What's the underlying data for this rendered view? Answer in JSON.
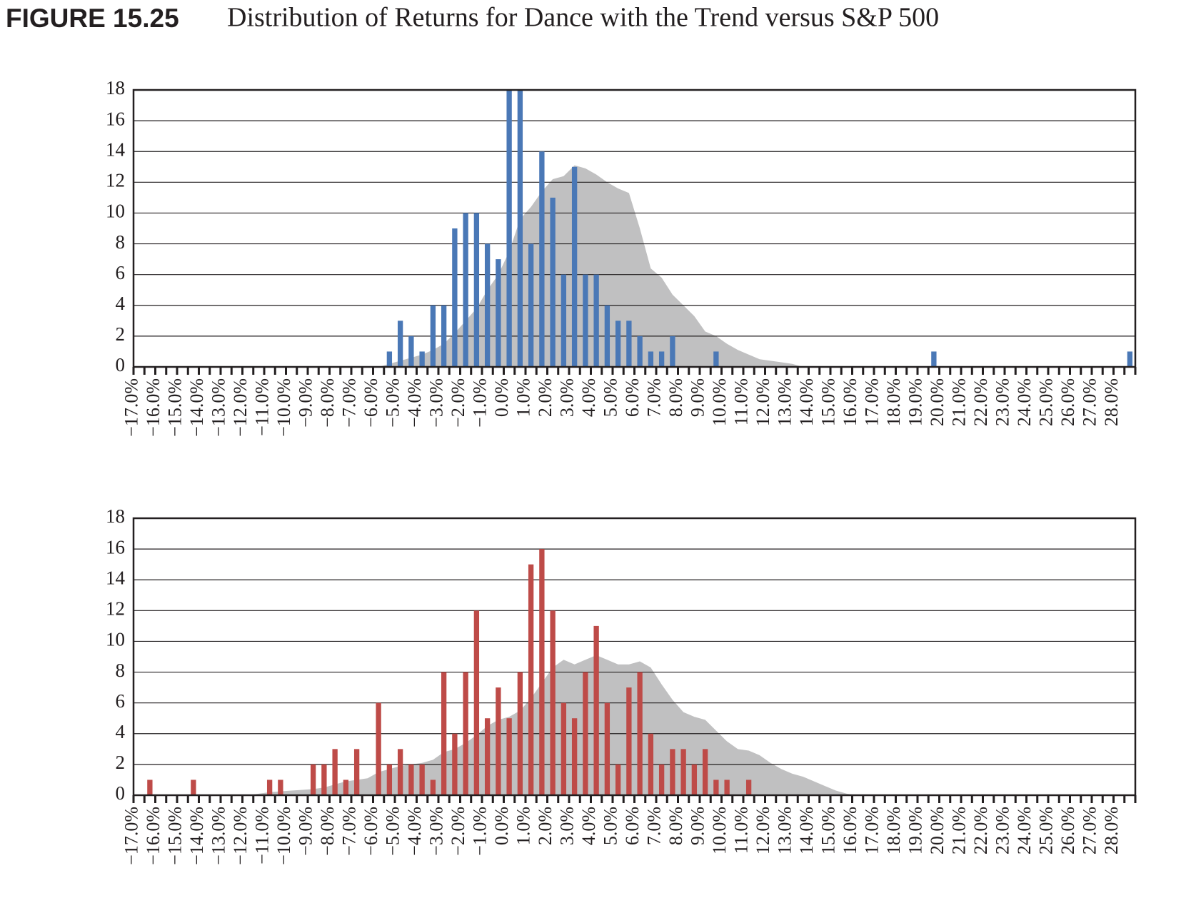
{
  "figure_label": "FIGURE 15.25",
  "title": "Distribution of Returns for Dance with the Trend versus S&P 500",
  "chart_data": [
    {
      "type": "bar",
      "categories": [
        "−17.0%",
        null,
        "−16.0%",
        null,
        "−15.0%",
        null,
        "−14.0%",
        null,
        "−13.0%",
        null,
        "−12.0%",
        null,
        "−11.0%",
        null,
        "−10.0%",
        null,
        "−9.0%",
        null,
        "−8.0%",
        null,
        "−7.0%",
        null,
        "−6.0%",
        null,
        "−5.0%",
        null,
        "−4.0%",
        null,
        "−3.0%",
        null,
        "−2.0%",
        null,
        "−1.0%",
        null,
        "0.0%",
        null,
        "1.0%",
        null,
        "2.0%",
        null,
        "3.0%",
        null,
        "4.0%",
        null,
        "5.0%",
        null,
        "6.0%",
        null,
        "7.0%",
        null,
        "8.0%",
        null,
        "9.0%",
        null,
        "10.0%",
        null,
        "11.0%",
        null,
        "12.0%",
        null,
        "13.0%",
        null,
        "14.0%",
        null,
        "15.0%",
        null,
        "16.0%",
        null,
        "17.0%",
        null,
        "18.0%",
        null,
        "19.0%",
        null,
        "20.0%",
        null,
        "21.0%",
        null,
        "22.0%",
        null,
        "23.0%",
        null,
        "24.0%",
        null,
        "25.0%",
        null,
        "26.0%",
        null,
        "27.0%",
        null,
        "28.0%",
        null
      ],
      "series": [
        {
          "type": "area",
          "color": "#c0c0c1",
          "values": [
            0,
            0,
            0,
            0,
            0,
            0,
            0,
            0,
            0,
            0,
            0,
            0,
            0,
            0,
            0,
            0,
            0,
            0,
            0,
            0,
            0,
            0,
            0,
            0.2,
            0.4,
            0.6,
            0.8,
            1.1,
            1.5,
            2.2,
            3.0,
            3.8,
            5.0,
            6.0,
            7.5,
            9.6,
            10.4,
            11.4,
            12.2,
            12.4,
            13.1,
            12.9,
            12.5,
            12.0,
            11.6,
            11.3,
            9.0,
            6.4,
            5.8,
            4.7,
            4.0,
            3.3,
            2.3,
            2.0,
            1.5,
            1.1,
            0.8,
            0.5,
            0.4,
            0.3,
            0.2,
            0,
            0,
            0,
            0,
            0,
            0,
            0,
            0,
            0,
            0,
            0,
            0,
            0,
            0,
            0,
            0,
            0,
            0,
            0,
            0,
            0,
            0,
            0,
            0,
            0,
            0,
            0,
            0,
            0,
            0,
            0
          ]
        },
        {
          "type": "bar",
          "color": "#4a78b6",
          "values": [
            0,
            0,
            0,
            0,
            0,
            0,
            0,
            0,
            0,
            0,
            0,
            0,
            0,
            0,
            0,
            0,
            0,
            0,
            0,
            0,
            0,
            0,
            0,
            1,
            3,
            2,
            1,
            4,
            4,
            9,
            10,
            10,
            8,
            7,
            18,
            18,
            8,
            14,
            11,
            6,
            13,
            6,
            6,
            4,
            3,
            3,
            2,
            1,
            1,
            2,
            0,
            0,
            0,
            1,
            0,
            0,
            0,
            0,
            0,
            0,
            0,
            0,
            0,
            0,
            0,
            0,
            0,
            0,
            0,
            0,
            0,
            0,
            0,
            1,
            0,
            0,
            0,
            0,
            0,
            0,
            0,
            0,
            0,
            0,
            0,
            0,
            0,
            0,
            0,
            0,
            0,
            1
          ]
        }
      ],
      "ylim": [
        0,
        18
      ],
      "yticks": [
        0,
        2,
        4,
        6,
        8,
        10,
        12,
        14,
        16,
        18
      ],
      "grid": true
    },
    {
      "type": "bar",
      "categories": [
        "−17.0%",
        null,
        "−16.0%",
        null,
        "−15.0%",
        null,
        "−14.0%",
        null,
        "−13.0%",
        null,
        "−12.0%",
        null,
        "−11.0%",
        null,
        "−10.0%",
        null,
        "−9.0%",
        null,
        "−8.0%",
        null,
        "−7.0%",
        null,
        "−6.0%",
        null,
        "−5.0%",
        null,
        "−4.0%",
        null,
        "−3.0%",
        null,
        "−2.0%",
        null,
        "−1.0%",
        null,
        "0.0%",
        null,
        "1.0%",
        null,
        "2.0%",
        null,
        "3.0%",
        null,
        "4.0%",
        null,
        "5.0%",
        null,
        "6.0%",
        null,
        "7.0%",
        null,
        "8.0%",
        null,
        "9.0%",
        null,
        "10.0%",
        null,
        "11.0%",
        null,
        "12.0%",
        null,
        "13.0%",
        null,
        "14.0%",
        null,
        "15.0%",
        null,
        "16.0%",
        null,
        "17.0%",
        null,
        "18.0%",
        null,
        "19.0%",
        null,
        "20.0%",
        null,
        "21.0%",
        null,
        "22.0%",
        null,
        "23.0%",
        null,
        "24.0%",
        null,
        "25.0%",
        null,
        "26.0%",
        null,
        "27.0%",
        null,
        "28.0%",
        null
      ],
      "series": [
        {
          "type": "area",
          "color": "#c0c0c1",
          "values": [
            0,
            0,
            0,
            0,
            0,
            0,
            0,
            0,
            0,
            0,
            0,
            0.1,
            0.2,
            0.25,
            0.3,
            0.35,
            0.4,
            0.5,
            0.7,
            0.9,
            1.0,
            1.1,
            1.5,
            1.7,
            1.9,
            2.0,
            2.1,
            2.3,
            2.8,
            3.0,
            3.4,
            3.9,
            4.5,
            4.9,
            5.1,
            5.5,
            6.3,
            7.3,
            8.3,
            8.8,
            8.5,
            8.8,
            9.1,
            8.8,
            8.5,
            8.5,
            8.7,
            8.3,
            7.2,
            6.2,
            5.4,
            5.1,
            4.9,
            4.2,
            3.5,
            3.0,
            2.9,
            2.6,
            2.1,
            1.7,
            1.4,
            1.2,
            0.9,
            0.6,
            0.3,
            0.1,
            0,
            0,
            0,
            0,
            0,
            0,
            0,
            0,
            0,
            0,
            0,
            0,
            0,
            0,
            0,
            0,
            0,
            0,
            0,
            0,
            0,
            0,
            0,
            0,
            0,
            0
          ]
        },
        {
          "type": "bar",
          "color": "#be4b48",
          "values": [
            0,
            1,
            0,
            0,
            0,
            1,
            0,
            0,
            0,
            0,
            0,
            0,
            1,
            1,
            0,
            0,
            2,
            2,
            3,
            1,
            3,
            0,
            6,
            2,
            3,
            2,
            2,
            1,
            8,
            4,
            8,
            12,
            5,
            7,
            5,
            8,
            15,
            16,
            12,
            6,
            5,
            8,
            11,
            6,
            2,
            7,
            8,
            4,
            2,
            3,
            3,
            2,
            3,
            1,
            1,
            0,
            1,
            0,
            0,
            0,
            0,
            0,
            0,
            0,
            0,
            0,
            0,
            0,
            0,
            0,
            0,
            0,
            0,
            0,
            0,
            0,
            0,
            0,
            0,
            0,
            0,
            0,
            0,
            0,
            0,
            0,
            0,
            0,
            0,
            0,
            0,
            0
          ]
        }
      ],
      "ylim": [
        0,
        18
      ],
      "yticks": [
        0,
        2,
        4,
        6,
        8,
        10,
        12,
        14,
        16,
        18
      ],
      "grid": true
    }
  ]
}
